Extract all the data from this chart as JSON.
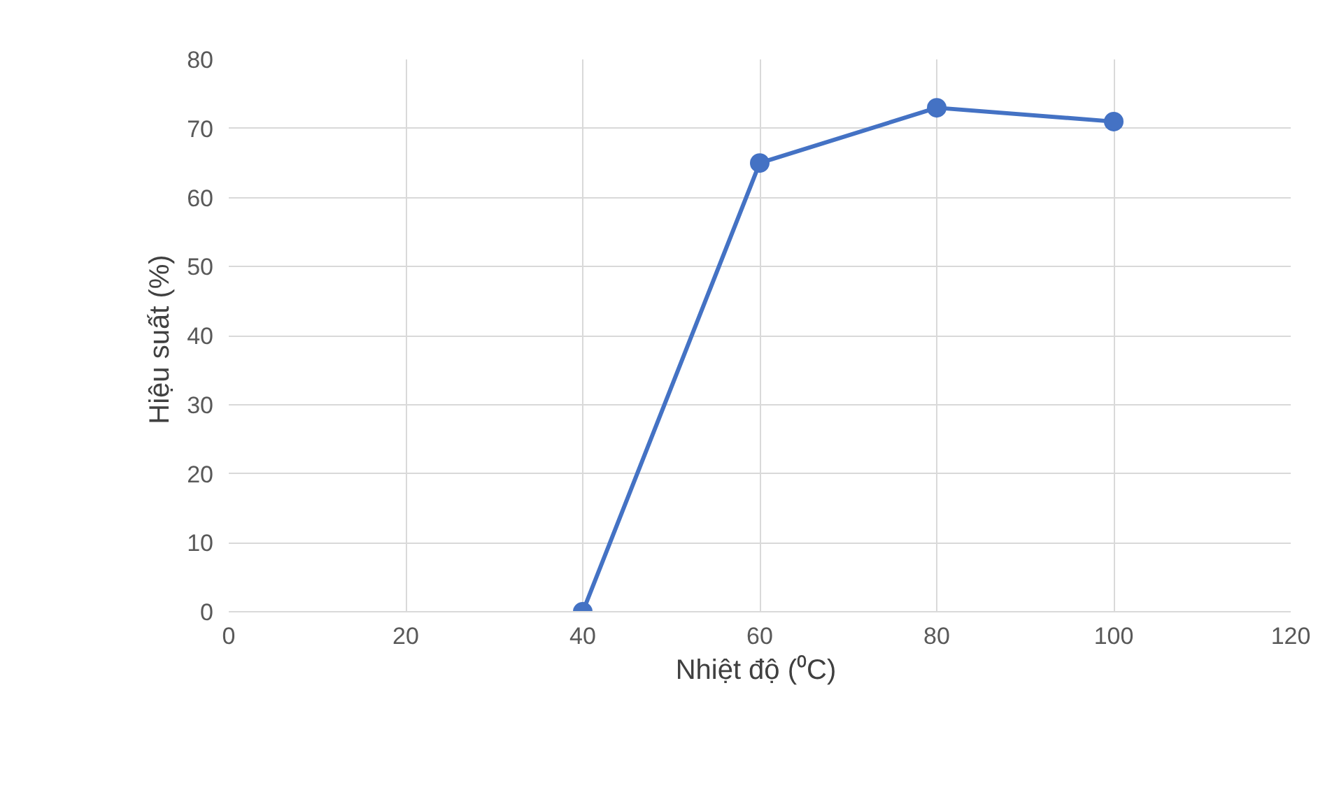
{
  "chart_data": {
    "type": "line",
    "xlabel": "Nhiệt độ  (⁰C)",
    "ylabel": "Hiệu suất  (%)",
    "x": [
      40,
      60,
      80,
      100
    ],
    "series": [
      {
        "color": "#4472c4",
        "values": [
          0,
          65,
          73,
          71
        ]
      }
    ],
    "xlim": [
      0,
      120
    ],
    "xticks": [
      0,
      20,
      40,
      60,
      80,
      100,
      120
    ],
    "ylim": [
      0,
      80
    ],
    "yticks": [
      0,
      10,
      20,
      30,
      40,
      50,
      60,
      70,
      80
    ],
    "grid": true,
    "marker": "circle",
    "line_style": "solid"
  }
}
